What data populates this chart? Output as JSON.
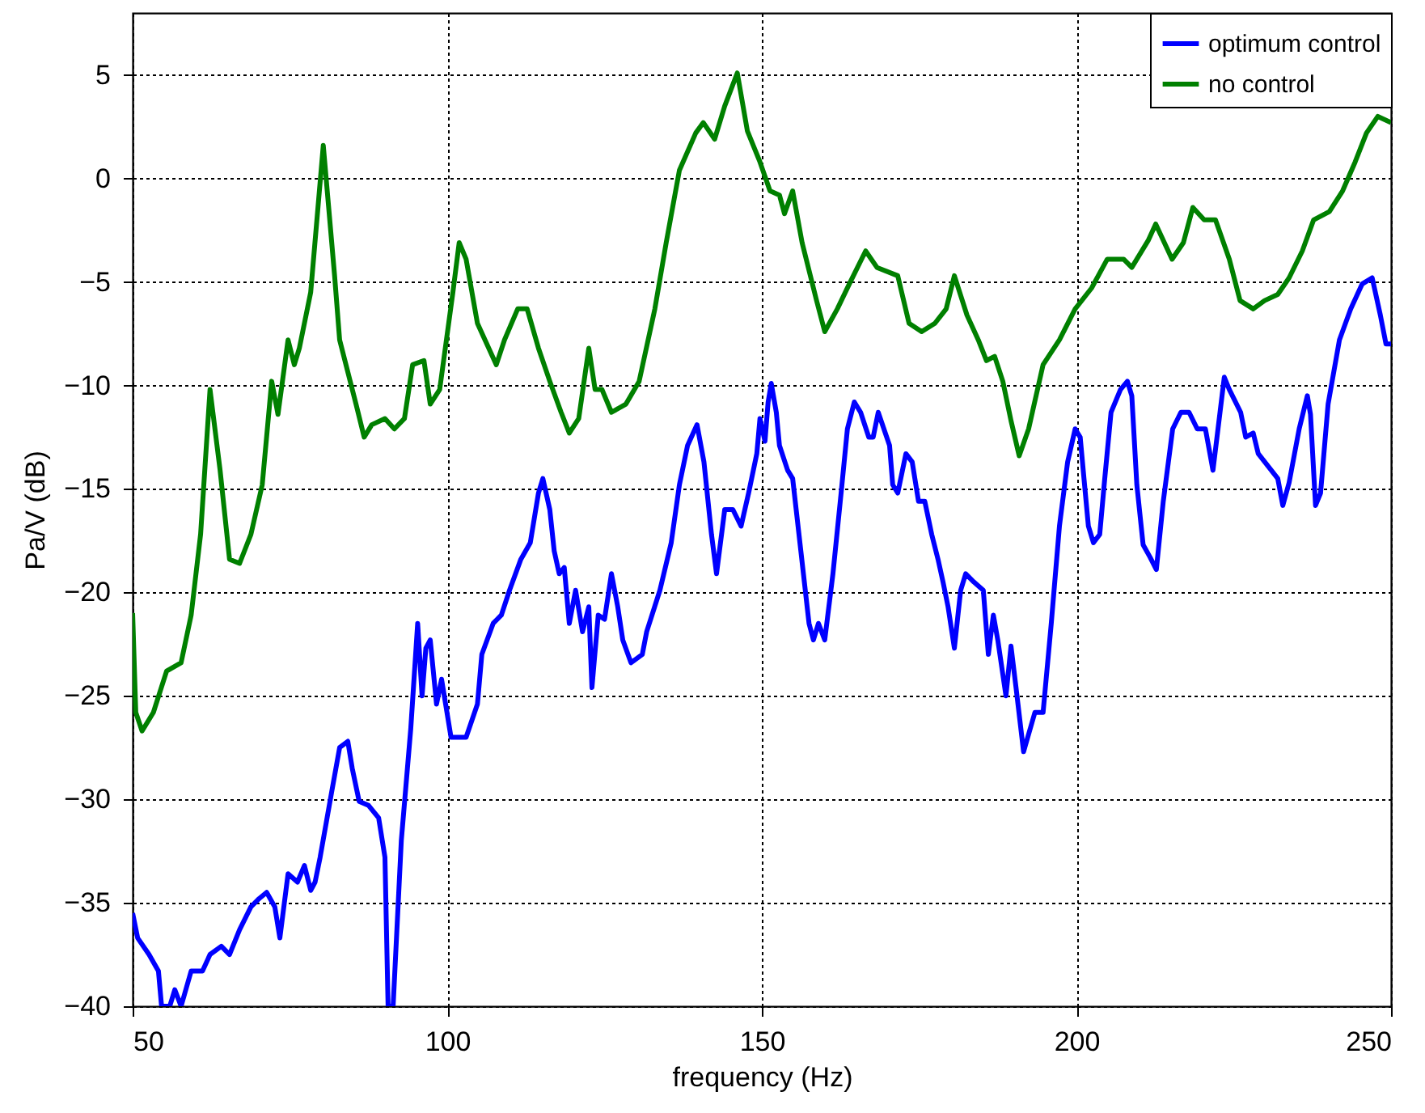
{
  "chart_data": {
    "type": "line",
    "xlabel": "frequency (Hz)",
    "ylabel": "Pa/V (dB)",
    "xlim": [
      50,
      250
    ],
    "xticks": [
      50,
      100,
      150,
      200,
      250
    ],
    "ylim": [
      -40,
      8
    ],
    "yticks": [
      -40,
      -35,
      -30,
      -25,
      -20,
      -15,
      -10,
      -5,
      0,
      5
    ],
    "grid": true,
    "legend": "top right",
    "line_style": "solid",
    "marker": "none",
    "series": [
      {
        "name": "optimum control",
        "color": "#0000ff",
        "x": [
          50,
          50.8,
          52.6,
          54.1,
          54.6,
          55.9,
          56.7,
          57.7,
          59.3,
          61.1,
          62.3,
          64.1,
          65.4,
          67,
          68.8,
          70.1,
          71.3,
          72.6,
          73.4,
          74.7,
          76.2,
          77.3,
          78.3,
          79,
          79.8,
          81.6,
          82.9,
          84.2,
          84.9,
          86,
          87.5,
          89.1,
          90.1,
          90.6,
          91.4,
          92.7,
          94.2,
          95.3,
          96,
          96.6,
          97.3,
          98.3,
          99.1,
          100.6,
          103,
          104.8,
          105.5,
          107.3,
          108.6,
          109.9,
          111.7,
          113.2,
          114.5,
          115.2,
          116.3,
          117,
          117.8,
          118.6,
          119.4,
          120.4,
          121.5,
          122.5,
          123,
          124,
          125,
          126.1,
          127.1,
          127.9,
          129.2,
          131,
          131.7,
          133.8,
          135.6,
          136.9,
          138.2,
          139.7,
          140.8,
          142,
          142.8,
          144.1,
          145.4,
          146.7,
          147.9,
          149.2,
          149.7,
          150.5,
          151,
          151.5,
          152.3,
          152.8,
          154.1,
          154.9,
          156.2,
          157.5,
          158.2,
          159,
          160,
          161.3,
          162.6,
          163.6,
          164.7,
          165.7,
          167,
          167.7,
          168.5,
          170.3,
          170.8,
          171.6,
          172.9,
          173.9,
          174.9,
          175.9,
          177,
          178,
          178.8,
          179.6,
          180.6,
          181.6,
          182.4,
          183.7,
          185.2,
          186,
          186.8,
          187.5,
          188.8,
          189.6,
          190.4,
          191.6,
          193.4,
          194.7,
          196,
          197.3,
          198.6,
          199.8,
          200.6,
          201.2,
          201.9,
          202.7,
          203.7,
          204.5,
          205.5,
          207,
          208.1,
          208.8,
          209.6,
          210.6,
          211.7,
          212.7,
          213.8,
          215.3,
          216.6,
          217.9,
          219.2,
          220.5,
          221.7,
          223.5,
          224.3,
          226.1,
          226.9,
          228.1,
          228.9,
          232,
          232.8,
          233.8,
          235.4,
          236.7,
          237.2,
          238,
          238.8,
          240,
          241.8,
          243.6,
          245.4,
          247,
          248.3,
          249.2,
          250
        ],
        "values": [
          -35.5,
          -36.7,
          -37.5,
          -38.3,
          -40,
          -40,
          -39.2,
          -40,
          -38.3,
          -38.3,
          -37.5,
          -37.1,
          -37.5,
          -36.3,
          -35.2,
          -34.8,
          -34.5,
          -35.2,
          -36.7,
          -33.6,
          -34,
          -33.2,
          -34.4,
          -34,
          -32.8,
          -29.7,
          -27.5,
          -27.2,
          -28.5,
          -30.1,
          -30.3,
          -30.9,
          -32.8,
          -40,
          -40,
          -32,
          -26.6,
          -21.5,
          -25,
          -22.7,
          -22.3,
          -25.4,
          -24.2,
          -27,
          -27,
          -25.4,
          -23,
          -21.5,
          -21.1,
          -19.9,
          -18.4,
          -17.6,
          -15.2,
          -14.5,
          -16,
          -18,
          -19.1,
          -18.8,
          -21.5,
          -19.9,
          -21.9,
          -20.7,
          -24.6,
          -21.1,
          -21.3,
          -19.1,
          -20.7,
          -22.3,
          -23.4,
          -23,
          -21.9,
          -19.9,
          -17.6,
          -14.8,
          -12.9,
          -11.9,
          -13.7,
          -17.2,
          -19.1,
          -16,
          -16,
          -16.8,
          -15.2,
          -13.3,
          -11.6,
          -12.7,
          -10.8,
          -9.9,
          -11.3,
          -12.9,
          -14.1,
          -14.5,
          -18,
          -21.5,
          -22.3,
          -21.5,
          -22.3,
          -19.1,
          -15.2,
          -12.1,
          -10.8,
          -11.3,
          -12.5,
          -12.5,
          -11.3,
          -12.9,
          -14.8,
          -15.2,
          -13.3,
          -13.7,
          -15.6,
          -15.6,
          -17.2,
          -18.4,
          -19.5,
          -20.7,
          -22.7,
          -19.9,
          -19.1,
          -19.5,
          -19.9,
          -23,
          -21.1,
          -22.3,
          -25,
          -22.6,
          -24.6,
          -27.7,
          -25.8,
          -25.8,
          -21.5,
          -16.8,
          -13.7,
          -12.1,
          -12.5,
          -14.5,
          -16.8,
          -17.6,
          -17.2,
          -14.5,
          -11.3,
          -10.2,
          -9.8,
          -10.5,
          -14.8,
          -17.7,
          -18.3,
          -18.9,
          -15.6,
          -12.1,
          -11.3,
          -11.3,
          -12.1,
          -12.1,
          -14.1,
          -9.6,
          -10.2,
          -11.3,
          -12.5,
          -12.3,
          -13.3,
          -14.5,
          -15.8,
          -14.7,
          -12.1,
          -10.5,
          -11.4,
          -15.8,
          -15.2,
          -10.9,
          -7.8,
          -6.3,
          -5.1,
          -4.8,
          -6.6,
          -8,
          -8
        ]
      },
      {
        "name": "no control",
        "color": "#008000",
        "x": [
          50,
          50.5,
          51.5,
          53.3,
          55.4,
          57.7,
          59.3,
          60.8,
          62.3,
          63.9,
          65.4,
          67,
          68.8,
          70.6,
          72.1,
          73.1,
          74.7,
          75.7,
          76.5,
          78.3,
          80.3,
          82.1,
          82.9,
          85.5,
          86.8,
          88,
          90.1,
          91.6,
          93.2,
          94.5,
          96.3,
          97.3,
          98.8,
          100.9,
          101.9,
          103,
          104.8,
          106,
          107.8,
          109.1,
          111.2,
          112.7,
          114.5,
          116.3,
          118.1,
          119.4,
          120.9,
          122.5,
          123.5,
          124.6,
          126.1,
          128.4,
          130.5,
          133,
          134.8,
          136.9,
          139.5,
          140.7,
          142.5,
          144.1,
          146.1,
          147.7,
          149.7,
          151.3,
          152.8,
          153.6,
          154.9,
          156.4,
          158.7,
          160,
          162,
          163.9,
          166.5,
          168.3,
          171.6,
          173.4,
          175.4,
          177.5,
          179.3,
          180.6,
          182.6,
          184.4,
          185.7,
          187,
          188.3,
          189.6,
          190.9,
          192.4,
          194.7,
          197.3,
          199.8,
          202.4,
          204.9,
          207.5,
          208.8,
          211.4,
          212.6,
          215.2,
          217,
          218.5,
          220.3,
          222.1,
          224.3,
          226,
          228.1,
          229.9,
          232,
          233.8,
          235.9,
          237.7,
          240.2,
          242.3,
          244.3,
          246.1,
          247.9,
          250
        ],
        "values": [
          -21,
          -25.8,
          -26.7,
          -25.8,
          -23.8,
          -23.4,
          -21.1,
          -17.2,
          -10.2,
          -14.1,
          -18.4,
          -18.6,
          -17.2,
          -14.8,
          -9.8,
          -11.4,
          -7.8,
          -9,
          -8.2,
          -5.5,
          1.6,
          -4.7,
          -7.8,
          -10.9,
          -12.5,
          -11.9,
          -11.6,
          -12.1,
          -11.6,
          -9,
          -8.8,
          -10.9,
          -10.2,
          -5.5,
          -3.1,
          -3.9,
          -7,
          -7.8,
          -9,
          -7.8,
          -6.3,
          -6.3,
          -8.2,
          -9.8,
          -11.3,
          -12.3,
          -11.6,
          -8.2,
          -10.2,
          -10.2,
          -11.3,
          -10.9,
          -9.8,
          -6.3,
          -3.1,
          0.4,
          2.2,
          2.7,
          1.9,
          3.5,
          5.1,
          2.3,
          0.8,
          -0.6,
          -0.8,
          -1.7,
          -0.6,
          -3.1,
          -5.9,
          -7.4,
          -6.3,
          -5.1,
          -3.5,
          -4.3,
          -4.7,
          -7,
          -7.4,
          -7,
          -6.3,
          -4.7,
          -6.6,
          -7.8,
          -8.8,
          -8.6,
          -9.8,
          -11.7,
          -13.4,
          -12.1,
          -9,
          -7.8,
          -6.3,
          -5.3,
          -3.9,
          -3.9,
          -4.3,
          -3,
          -2.2,
          -3.9,
          -3.1,
          -1.4,
          -2,
          -2,
          -3.9,
          -5.9,
          -6.3,
          -5.9,
          -5.6,
          -4.8,
          -3.5,
          -2,
          -1.6,
          -0.6,
          0.8,
          2.2,
          3,
          2.7
        ]
      }
    ]
  }
}
